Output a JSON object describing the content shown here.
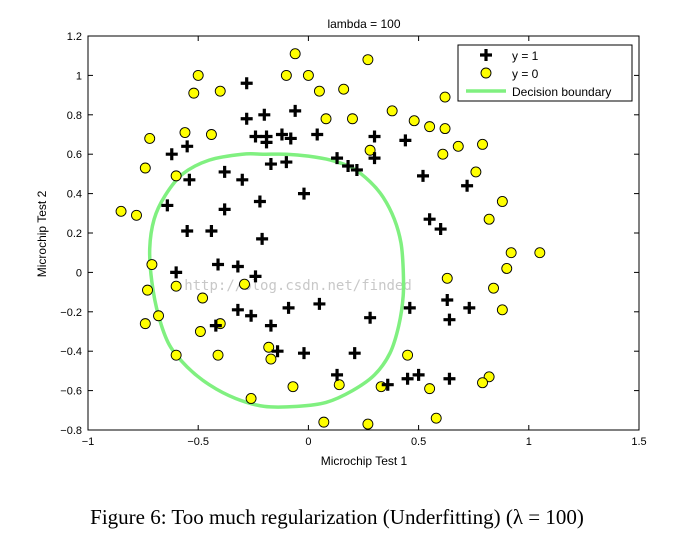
{
  "caption": "Figure 6: Too much regularization (Underfitting) (λ = 100)",
  "watermark": "http://blog.csdn.net/finded",
  "chart_data": {
    "type": "scatter",
    "title": "lambda = 100",
    "xlabel": "Microchip Test 1",
    "ylabel": "Microchip Test 2",
    "xlim": [
      -1,
      1.5
    ],
    "ylim": [
      -0.8,
      1.2
    ],
    "xticks": [
      -1,
      -0.5,
      0,
      0.5,
      1,
      1.5
    ],
    "xtick_labels": [
      "−1",
      "−0.5",
      "0",
      "0.5",
      "1",
      "1.5"
    ],
    "yticks": [
      -0.8,
      -0.6,
      -0.4,
      -0.2,
      0,
      0.2,
      0.4,
      0.6,
      0.8,
      1,
      1.2
    ],
    "ytick_labels": [
      "−0.8",
      "−0.6",
      "−0.4",
      "−0.2",
      "0",
      "0.2",
      "0.4",
      "0.6",
      "0.8",
      "1",
      "1.2"
    ],
    "grid": false,
    "legend_position": "top-right",
    "colors": {
      "positive": "#000000",
      "negative_fill": "#ffff00",
      "boundary": "#80f080"
    },
    "series": [
      {
        "name": "y = 1",
        "marker": "plus",
        "points": [
          [
            -0.28,
            0.96
          ],
          [
            -0.28,
            0.78
          ],
          [
            -0.24,
            0.69
          ],
          [
            -0.2,
            0.8
          ],
          [
            -0.19,
            0.69
          ],
          [
            -0.19,
            0.66
          ],
          [
            -0.12,
            0.7
          ],
          [
            -0.08,
            0.68
          ],
          [
            -0.06,
            0.82
          ],
          [
            0.04,
            0.7
          ],
          [
            0.13,
            0.58
          ],
          [
            0.18,
            0.54
          ],
          [
            0.22,
            0.52
          ],
          [
            0.3,
            0.69
          ],
          [
            0.3,
            0.58
          ],
          [
            0.44,
            0.67
          ],
          [
            0.52,
            0.49
          ],
          [
            -0.55,
            0.64
          ],
          [
            -0.62,
            0.6
          ],
          [
            -0.54,
            0.47
          ],
          [
            -0.38,
            0.51
          ],
          [
            -0.3,
            0.47
          ],
          [
            -0.17,
            0.55
          ],
          [
            -0.1,
            0.56
          ],
          [
            -0.02,
            0.4
          ],
          [
            -0.22,
            0.36
          ],
          [
            -0.38,
            0.32
          ],
          [
            -0.64,
            0.34
          ],
          [
            -0.55,
            0.21
          ],
          [
            -0.44,
            0.21
          ],
          [
            -0.21,
            0.17
          ],
          [
            -0.6,
            0.0
          ],
          [
            -0.41,
            0.04
          ],
          [
            -0.32,
            0.03
          ],
          [
            -0.24,
            -0.02
          ],
          [
            -0.32,
            -0.19
          ],
          [
            -0.26,
            -0.22
          ],
          [
            -0.09,
            -0.18
          ],
          [
            0.05,
            -0.16
          ],
          [
            0.28,
            -0.23
          ],
          [
            -0.17,
            -0.27
          ],
          [
            -0.14,
            -0.4
          ],
          [
            -0.02,
            -0.41
          ],
          [
            -0.42,
            -0.27
          ],
          [
            0.21,
            -0.41
          ],
          [
            0.13,
            -0.52
          ],
          [
            0.36,
            -0.57
          ],
          [
            0.45,
            -0.54
          ],
          [
            0.5,
            -0.52
          ],
          [
            0.64,
            -0.54
          ],
          [
            0.46,
            -0.18
          ],
          [
            0.64,
            -0.24
          ],
          [
            0.73,
            -0.18
          ],
          [
            0.63,
            -0.14
          ],
          [
            0.55,
            0.27
          ],
          [
            0.6,
            0.22
          ],
          [
            0.72,
            0.44
          ]
        ]
      },
      {
        "name": "y = 0",
        "marker": "circle",
        "points": [
          [
            -0.5,
            1.0
          ],
          [
            -0.4,
            0.92
          ],
          [
            -0.52,
            0.91
          ],
          [
            -0.06,
            1.11
          ],
          [
            -0.1,
            1.0
          ],
          [
            0.0,
            1.0
          ],
          [
            0.05,
            0.92
          ],
          [
            0.08,
            0.78
          ],
          [
            0.16,
            0.93
          ],
          [
            0.2,
            0.78
          ],
          [
            0.27,
            1.08
          ],
          [
            0.38,
            0.82
          ],
          [
            0.48,
            0.77
          ],
          [
            0.62,
            0.89
          ],
          [
            0.55,
            0.74
          ],
          [
            0.62,
            0.73
          ],
          [
            0.68,
            0.64
          ],
          [
            0.61,
            0.6
          ],
          [
            0.79,
            0.65
          ],
          [
            0.76,
            0.51
          ],
          [
            0.82,
            0.27
          ],
          [
            0.88,
            0.36
          ],
          [
            0.92,
            0.1
          ],
          [
            0.9,
            0.02
          ],
          [
            1.05,
            0.1
          ],
          [
            0.84,
            -0.08
          ],
          [
            0.63,
            -0.03
          ],
          [
            0.88,
            -0.19
          ],
          [
            0.82,
            -0.53
          ],
          [
            0.79,
            -0.56
          ],
          [
            0.58,
            -0.74
          ],
          [
            0.55,
            -0.59
          ],
          [
            0.45,
            -0.42
          ],
          [
            0.33,
            -0.58
          ],
          [
            0.27,
            -0.77
          ],
          [
            0.14,
            -0.57
          ],
          [
            0.07,
            -0.76
          ],
          [
            -0.07,
            -0.58
          ],
          [
            -0.26,
            -0.64
          ],
          [
            -0.18,
            -0.38
          ],
          [
            -0.17,
            -0.44
          ],
          [
            -0.29,
            -0.06
          ],
          [
            -0.48,
            -0.13
          ],
          [
            -0.4,
            -0.26
          ],
          [
            -0.41,
            -0.42
          ],
          [
            -0.49,
            -0.3
          ],
          [
            -0.6,
            -0.42
          ],
          [
            -0.68,
            -0.22
          ],
          [
            -0.74,
            -0.26
          ],
          [
            -0.73,
            -0.09
          ],
          [
            -0.6,
            -0.07
          ],
          [
            -0.71,
            0.04
          ],
          [
            -0.78,
            0.29
          ],
          [
            -0.85,
            0.31
          ],
          [
            -0.74,
            0.53
          ],
          [
            -0.6,
            0.49
          ],
          [
            -0.72,
            0.68
          ],
          [
            -0.56,
            0.71
          ],
          [
            -0.44,
            0.7
          ],
          [
            0.28,
            0.62
          ]
        ]
      },
      {
        "name": "Decision boundary",
        "marker": "line",
        "points": [
          [
            -0.3,
            0.6
          ],
          [
            -0.2,
            0.6
          ],
          [
            -0.1,
            0.6
          ],
          [
            0.0,
            0.59
          ],
          [
            0.1,
            0.57
          ],
          [
            0.2,
            0.53
          ],
          [
            0.28,
            0.46
          ],
          [
            0.34,
            0.38
          ],
          [
            0.39,
            0.27
          ],
          [
            0.42,
            0.15
          ],
          [
            0.43,
            0.02
          ],
          [
            0.43,
            -0.12
          ],
          [
            0.41,
            -0.27
          ],
          [
            0.37,
            -0.41
          ],
          [
            0.3,
            -0.52
          ],
          [
            0.2,
            -0.6
          ],
          [
            0.08,
            -0.66
          ],
          [
            -0.05,
            -0.68
          ],
          [
            -0.2,
            -0.68
          ],
          [
            -0.33,
            -0.64
          ],
          [
            -0.45,
            -0.57
          ],
          [
            -0.55,
            -0.48
          ],
          [
            -0.63,
            -0.37
          ],
          [
            -0.68,
            -0.22
          ],
          [
            -0.71,
            -0.05
          ],
          [
            -0.72,
            0.12
          ],
          [
            -0.7,
            0.27
          ],
          [
            -0.65,
            0.39
          ],
          [
            -0.57,
            0.5
          ],
          [
            -0.45,
            0.57
          ],
          [
            -0.3,
            0.6
          ]
        ]
      }
    ]
  }
}
